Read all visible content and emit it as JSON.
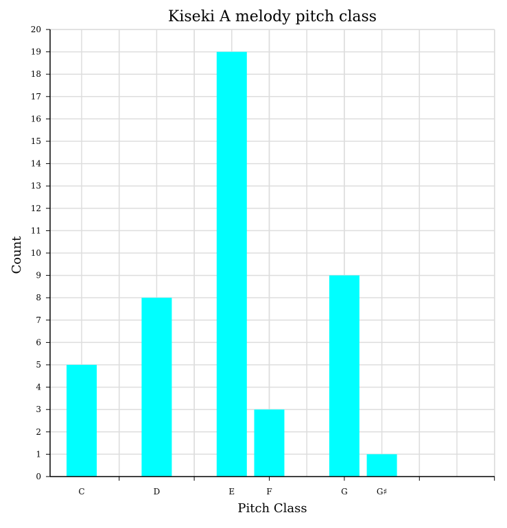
{
  "chart_data": {
    "type": "bar",
    "title": "Kiseki A melody pitch class",
    "xlabel": "Pitch Class",
    "ylabel": "Count",
    "categories": [
      "C",
      "D",
      "E",
      "F",
      "G",
      "G♯"
    ],
    "values": [
      5,
      8,
      19,
      3,
      9,
      1
    ],
    "ylim": [
      0,
      20
    ],
    "yticks": [
      0,
      1,
      2,
      3,
      4,
      5,
      6,
      7,
      8,
      9,
      10,
      11,
      12,
      13,
      14,
      15,
      16,
      17,
      18,
      19,
      20
    ],
    "grid": true,
    "bar_color": "#00ffff",
    "grid_color": "#dddddd"
  }
}
